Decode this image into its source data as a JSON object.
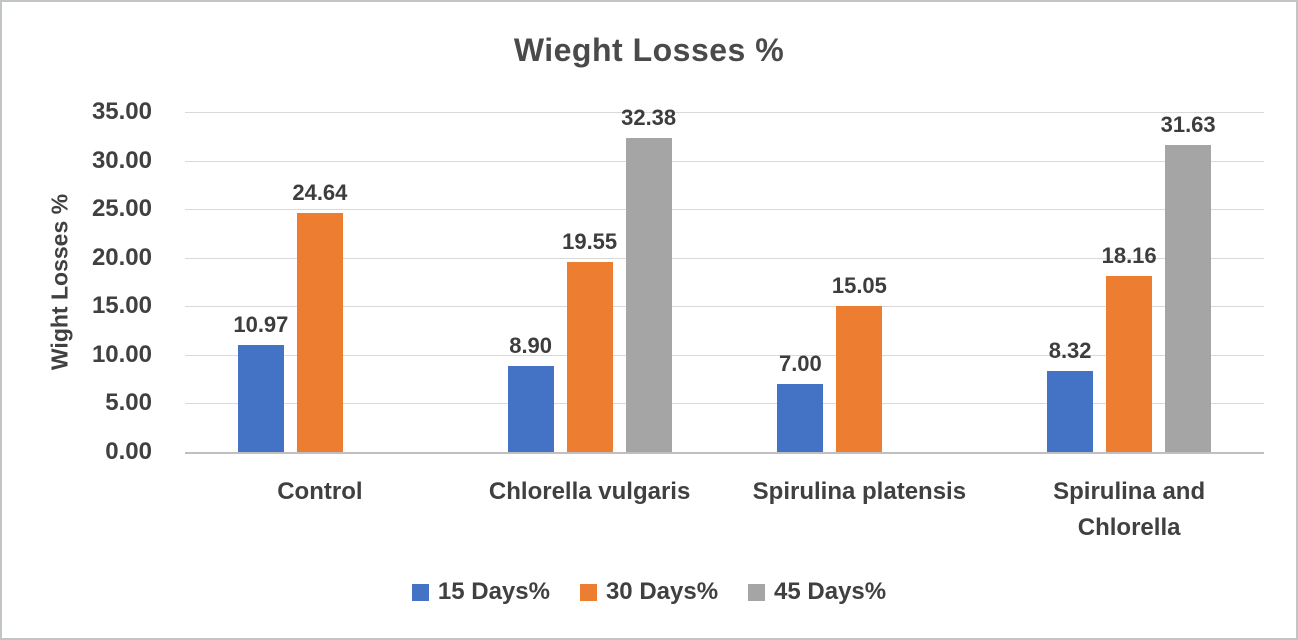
{
  "frame": {
    "background": "#ffffff",
    "border_color": "#c2c6c2"
  },
  "chart_data": {
    "type": "bar",
    "title": "Wieght Losses %",
    "ylabel": "Wight Losses %",
    "xlabel": "",
    "categories": [
      "Control",
      "Chlorella vulgaris",
      "Spirulina platensis",
      "Spirulina and Chlorella"
    ],
    "xtick_labels": [
      "Control",
      "Chlorella vulgaris",
      "Spirulina platensis",
      "Spirulina and\nChlorella"
    ],
    "series": [
      {
        "name": "15 Days%",
        "color": "#4472C4",
        "values": [
          10.97,
          8.9,
          7.0,
          8.32
        ]
      },
      {
        "name": "30 Days%",
        "color": "#ED7D31",
        "values": [
          24.64,
          19.55,
          15.05,
          18.16
        ]
      },
      {
        "name": "45 Days%",
        "color": "#A5A5A5",
        "values": [
          null,
          32.38,
          null,
          31.63
        ]
      }
    ],
    "ylim": [
      0,
      35
    ],
    "ytick_step": 5,
    "ytick_labels": [
      "35.00",
      "30.00",
      "25.00",
      "20.00",
      "15.00",
      "10.00",
      "5.00",
      "0.00"
    ],
    "value_label_decimals": 2,
    "grid": true,
    "legend_position": "bottom",
    "gridline_color": "#d9d9d9",
    "axis_line_color": "#bfbfbf",
    "text_color": "#404040"
  }
}
